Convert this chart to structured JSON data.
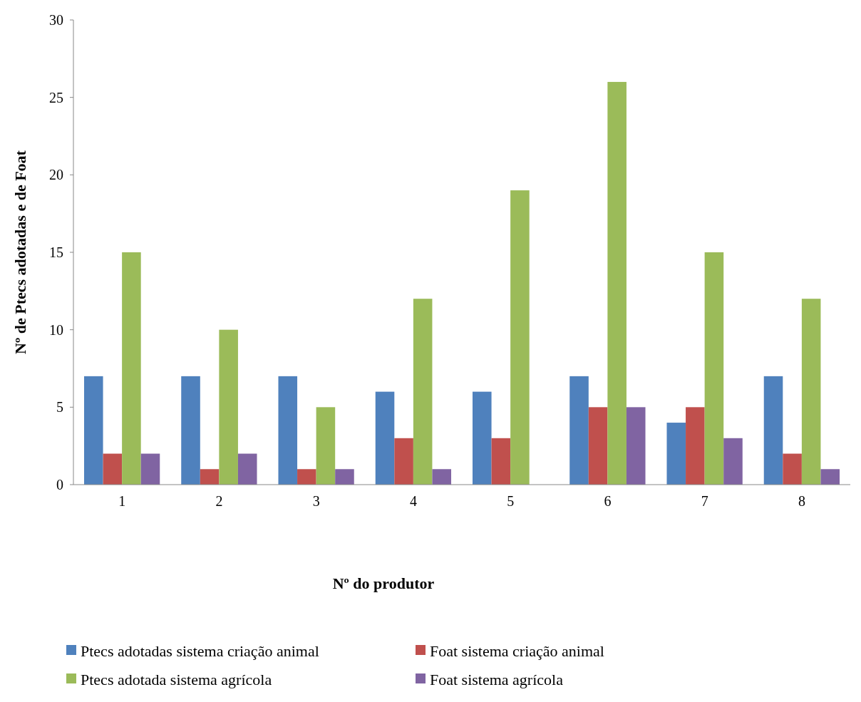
{
  "chart_data": {
    "type": "bar",
    "xlabel": "Nº do produtor",
    "ylabel": "Nº de Ptecs adotadas e de Foat",
    "categories": [
      "1",
      "2",
      "3",
      "4",
      "5",
      "6",
      "7",
      "8"
    ],
    "series": [
      {
        "name": "Ptecs adotadas sistema criação animal",
        "color": "#4f81bd",
        "values": [
          7,
          7,
          7,
          6,
          6,
          7,
          4,
          7
        ]
      },
      {
        "name": "Foat sistema criação animal",
        "color": "#c0504d",
        "values": [
          2,
          1,
          1,
          3,
          3,
          5,
          5,
          2
        ]
      },
      {
        "name": "Ptecs adotada sistema agrícola",
        "color": "#9bbb59",
        "values": [
          15,
          10,
          5,
          12,
          19,
          26,
          15,
          12
        ]
      },
      {
        "name": "Foat sistema agrícola",
        "color": "#8064a2",
        "values": [
          2,
          2,
          1,
          1,
          0,
          5,
          3,
          1
        ]
      }
    ],
    "ylim": [
      0,
      30
    ],
    "yticks": [
      0,
      5,
      10,
      15,
      20,
      25,
      30
    ],
    "grid": false,
    "legend": "bottom"
  }
}
